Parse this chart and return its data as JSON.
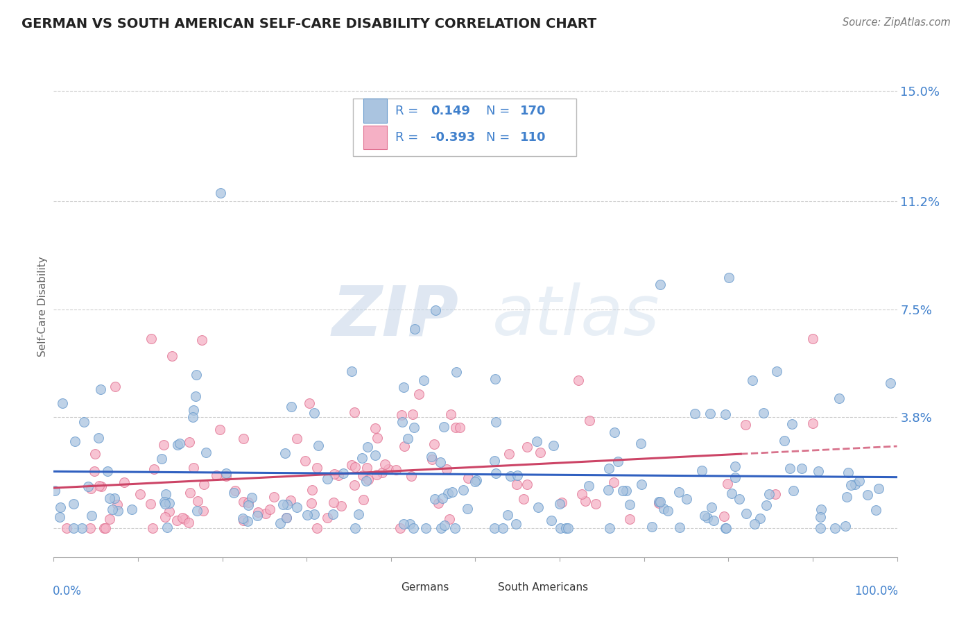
{
  "title": "GERMAN VS SOUTH AMERICAN SELF-CARE DISABILITY CORRELATION CHART",
  "source": "Source: ZipAtlas.com",
  "ylabel": "Self-Care Disability",
  "yticks": [
    0.0,
    0.038,
    0.075,
    0.112,
    0.15
  ],
  "ytick_labels": [
    "",
    "3.8%",
    "7.5%",
    "11.2%",
    "15.0%"
  ],
  "xlim": [
    0.0,
    1.0
  ],
  "ylim": [
    -0.01,
    0.162
  ],
  "german_color": "#aac4e0",
  "german_edge_color": "#6699cc",
  "south_american_color": "#f5b0c5",
  "south_american_edge_color": "#e07090",
  "german_R": 0.149,
  "german_N": 170,
  "south_american_R": -0.393,
  "south_american_N": 110,
  "blue_line_color": "#3060c0",
  "pink_line_color": "#cc4466",
  "watermark_zip": "ZIP",
  "watermark_atlas": "atlas",
  "background_color": "#ffffff",
  "grid_color": "#c8c8c8",
  "tick_label_color": "#4080cc",
  "legend_text_color": "#4080cc",
  "legend_border_color": "#bbbbbb"
}
